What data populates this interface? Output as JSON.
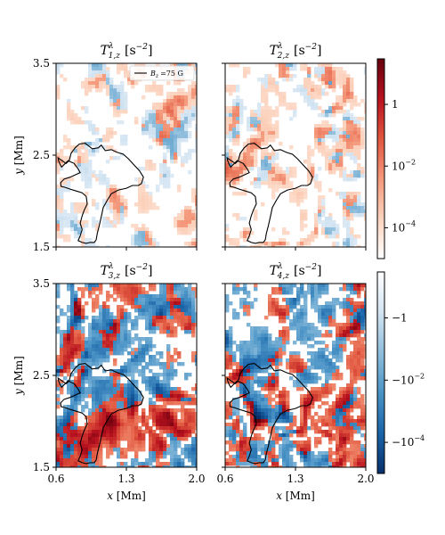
{
  "chart_data": {
    "type": "heatmap",
    "panels": [
      {
        "id": "T1",
        "title_main": "T",
        "title_sup": "λ",
        "title_sub": "1,z",
        "title_unit": "[s",
        "title_unit_exp": "−2",
        "title_unit_close": "]",
        "colormap": "reds",
        "sign": "positive"
      },
      {
        "id": "T2",
        "title_main": "T",
        "title_sup": "λ",
        "title_sub": "2,z",
        "title_unit": "[s",
        "title_unit_exp": "−2",
        "title_unit_close": "]",
        "colormap": "reds",
        "sign": "positive"
      },
      {
        "id": "T3",
        "title_main": "T",
        "title_sup": "λ",
        "title_sub": "3,z",
        "title_unit": "[s",
        "title_unit_exp": "−2",
        "title_unit_close": "]",
        "colormap": "blues",
        "sign": "negative"
      },
      {
        "id": "T4",
        "title_main": "T",
        "title_sup": "λ",
        "title_sub": "4,z",
        "title_unit": "[s",
        "title_unit_exp": "−2",
        "title_unit_close": "]",
        "colormap": "blues",
        "sign": "negative"
      }
    ],
    "xlabel": "x [Mm]",
    "ylabel": "y [Mm]",
    "xlim": [
      0.6,
      2.0
    ],
    "ylim": [
      1.5,
      3.5
    ],
    "xticks": [
      {
        "value": 0.6,
        "label": "0.6"
      },
      {
        "value": 1.3,
        "label": "1.3"
      },
      {
        "value": 2.0,
        "label": "2.0"
      }
    ],
    "yticks": [
      {
        "value": 1.5,
        "label": "1.5"
      },
      {
        "value": 2.5,
        "label": "2.5"
      },
      {
        "value": 3.5,
        "label": "3.5"
      }
    ],
    "legend": {
      "label": "B",
      "label_sub": "z",
      "label_value": "=75 G",
      "placement": "upper right",
      "line_color": "#000000"
    },
    "colorbar_top": {
      "scale": "log",
      "range": [
        1e-05,
        30
      ],
      "ticks": [
        {
          "value": 1,
          "label": "1"
        },
        {
          "value": 0.01,
          "label": "10",
          "exp": "−2"
        },
        {
          "value": 0.0001,
          "label": "10",
          "exp": "−4"
        }
      ],
      "colors": [
        "#ffffff",
        "#fcd2bd",
        "#f4987b",
        "#e0563e",
        "#b8121f",
        "#67000d"
      ]
    },
    "colorbar_bottom": {
      "scale": "symlog-negative",
      "range": [
        -30,
        -1e-05
      ],
      "ticks": [
        {
          "value": -0.0001,
          "label": "−10",
          "exp": "−4"
        },
        {
          "value": -0.01,
          "label": "−10",
          "exp": "−2"
        },
        {
          "value": -1,
          "label": "−1"
        }
      ],
      "colors": [
        "#ffffff",
        "#d3e4f2",
        "#8fbedc",
        "#4a93c6",
        "#1a64a8",
        "#08306b"
      ]
    },
    "contour_Bz_75G": [
      [
        0.655,
        2.37
      ],
      [
        0.64,
        2.4
      ],
      [
        0.625,
        2.44
      ],
      [
        0.62,
        2.47
      ],
      [
        0.7,
        2.41
      ],
      [
        0.73,
        2.44
      ],
      [
        0.75,
        2.52
      ],
      [
        0.79,
        2.58
      ],
      [
        0.83,
        2.62
      ],
      [
        0.89,
        2.63
      ],
      [
        0.96,
        2.57
      ],
      [
        1.02,
        2.58
      ],
      [
        1.05,
        2.61
      ],
      [
        1.09,
        2.55
      ],
      [
        1.15,
        2.56
      ],
      [
        1.21,
        2.53
      ],
      [
        1.27,
        2.51
      ],
      [
        1.32,
        2.46
      ],
      [
        1.37,
        2.4
      ],
      [
        1.43,
        2.33
      ],
      [
        1.47,
        2.26
      ],
      [
        1.45,
        2.19
      ],
      [
        1.42,
        2.17
      ],
      [
        1.36,
        2.17
      ],
      [
        1.3,
        2.14
      ],
      [
        1.22,
        2.12
      ],
      [
        1.15,
        2.08
      ],
      [
        1.11,
        2.01
      ],
      [
        1.07,
        1.93
      ],
      [
        1.05,
        1.83
      ],
      [
        1.03,
        1.73
      ],
      [
        1.01,
        1.65
      ],
      [
        1.0,
        1.58
      ],
      [
        0.98,
        1.55
      ],
      [
        0.94,
        1.55
      ],
      [
        0.9,
        1.54
      ],
      [
        0.86,
        1.55
      ],
      [
        0.82,
        1.57
      ],
      [
        0.84,
        1.62
      ],
      [
        0.86,
        1.69
      ],
      [
        0.84,
        1.76
      ],
      [
        0.86,
        1.84
      ],
      [
        0.88,
        1.9
      ],
      [
        0.91,
        1.97
      ],
      [
        0.9,
        2.05
      ],
      [
        0.86,
        2.09
      ],
      [
        0.8,
        2.11
      ],
      [
        0.74,
        2.13
      ],
      [
        0.69,
        2.15
      ],
      [
        0.65,
        2.16
      ],
      [
        0.645,
        2.2
      ],
      [
        0.68,
        2.24
      ],
      [
        0.74,
        2.26
      ],
      [
        0.8,
        2.29
      ],
      [
        0.84,
        2.31
      ],
      [
        0.82,
        2.35
      ],
      [
        0.78,
        2.41
      ],
      [
        0.72,
        2.44
      ]
    ]
  }
}
